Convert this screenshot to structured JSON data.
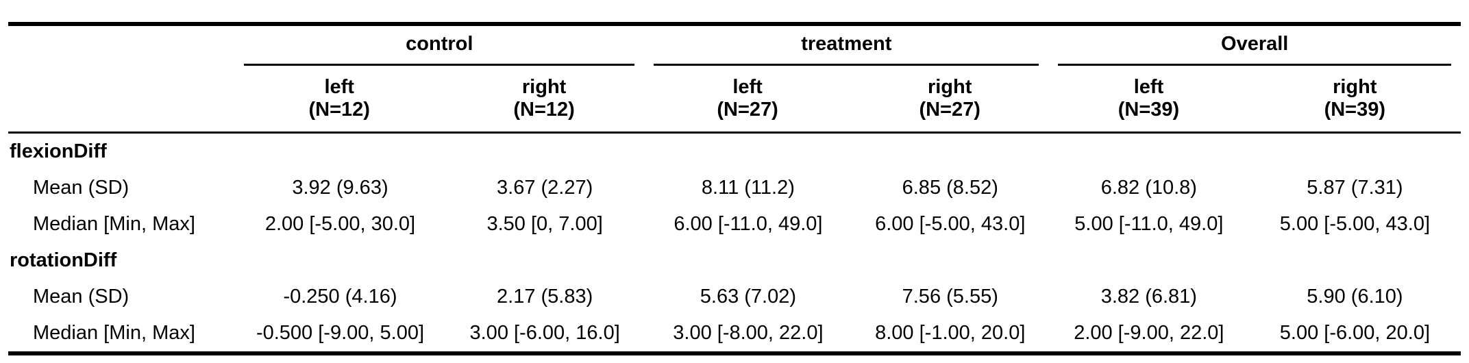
{
  "groups": [
    {
      "label": "control"
    },
    {
      "label": "treatment"
    },
    {
      "label": "Overall"
    }
  ],
  "columns": [
    {
      "label": "left",
      "n": "(N=12)"
    },
    {
      "label": "right",
      "n": "(N=12)"
    },
    {
      "label": "left",
      "n": "(N=27)"
    },
    {
      "label": "right",
      "n": "(N=27)"
    },
    {
      "label": "left",
      "n": "(N=39)"
    },
    {
      "label": "right",
      "n": "(N=39)"
    }
  ],
  "sections": [
    {
      "label": "flexionDiff",
      "rows": [
        {
          "label": "Mean (SD)",
          "values": [
            "3.92 (9.63)",
            "3.67 (2.27)",
            "8.11 (11.2)",
            "6.85 (8.52)",
            "6.82 (10.8)",
            "5.87 (7.31)"
          ]
        },
        {
          "label": "Median [Min, Max]",
          "values": [
            "2.00 [-5.00, 30.0]",
            "3.50 [0, 7.00]",
            "6.00 [-11.0, 49.0]",
            "6.00 [-5.00, 43.0]",
            "5.00 [-11.0, 49.0]",
            "5.00 [-5.00, 43.0]"
          ]
        }
      ]
    },
    {
      "label": "rotationDiff",
      "rows": [
        {
          "label": "Mean (SD)",
          "values": [
            "-0.250 (4.16)",
            "2.17 (5.83)",
            "5.63 (7.02)",
            "7.56 (5.55)",
            "3.82 (6.81)",
            "5.90 (6.10)"
          ]
        },
        {
          "label": "Median [Min, Max]",
          "values": [
            "-0.500 [-9.00, 5.00]",
            "3.00 [-6.00, 16.0]",
            "3.00 [-8.00, 22.0]",
            "8.00 [-1.00, 20.0]",
            "2.00 [-9.00, 22.0]",
            "5.00 [-6.00, 20.0]"
          ]
        }
      ]
    }
  ]
}
